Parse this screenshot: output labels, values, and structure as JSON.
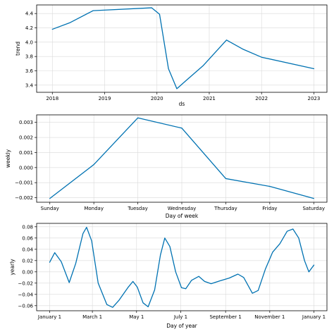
{
  "chart_data": [
    {
      "type": "line",
      "name": "trend",
      "xlabel": "ds",
      "ylabel": "trend",
      "x_ticks": [
        {
          "label": "2018",
          "value": 2018.0
        },
        {
          "label": "2019",
          "value": 2019.0
        },
        {
          "label": "2020",
          "value": 2020.0
        },
        {
          "label": "2021",
          "value": 2021.0
        },
        {
          "label": "2022",
          "value": 2022.0
        },
        {
          "label": "2023",
          "value": 2023.0
        }
      ],
      "y_ticks": [
        {
          "label": "3.4",
          "value": 3.4
        },
        {
          "label": "3.6",
          "value": 3.6
        },
        {
          "label": "3.8",
          "value": 3.8
        },
        {
          "label": "4.0",
          "value": 4.0
        },
        {
          "label": "4.2",
          "value": 4.2
        },
        {
          "label": "4.4",
          "value": 4.4
        }
      ],
      "xlim": [
        2017.7,
        2023.25
      ],
      "ylim": [
        3.3,
        4.52
      ],
      "grid": true,
      "color": "#0072B2",
      "points": [
        [
          2018.0,
          4.18
        ],
        [
          2018.33,
          4.27
        ],
        [
          2018.78,
          4.44
        ],
        [
          2019.9,
          4.48
        ],
        [
          2020.05,
          4.39
        ],
        [
          2020.22,
          3.63
        ],
        [
          2020.38,
          3.35
        ],
        [
          2020.55,
          3.46
        ],
        [
          2020.88,
          3.67
        ],
        [
          2021.33,
          4.03
        ],
        [
          2021.65,
          3.9
        ],
        [
          2022.0,
          3.79
        ],
        [
          2023.0,
          3.63
        ]
      ]
    },
    {
      "type": "line",
      "name": "weekly",
      "xlabel": "Day of week",
      "ylabel": "weekly",
      "x_ticks": [
        {
          "label": "Sunday",
          "value": 0
        },
        {
          "label": "Monday",
          "value": 1
        },
        {
          "label": "Tuesday",
          "value": 2
        },
        {
          "label": "Wednesday",
          "value": 3
        },
        {
          "label": "Thursday",
          "value": 4
        },
        {
          "label": "Friday",
          "value": 5
        },
        {
          "label": "Saturday",
          "value": 6
        }
      ],
      "y_ticks": [
        {
          "label": "−0.002",
          "value": -0.002
        },
        {
          "label": "−0.001",
          "value": -0.001
        },
        {
          "label": "0.000",
          "value": 0.0
        },
        {
          "label": "0.001",
          "value": 0.001
        },
        {
          "label": "0.002",
          "value": 0.002
        },
        {
          "label": "0.003",
          "value": 0.003
        }
      ],
      "xlim": [
        -0.3,
        6.3
      ],
      "ylim": [
        -0.0023,
        0.0035
      ],
      "grid": true,
      "color": "#0072B2",
      "points": [
        [
          0,
          -0.00205
        ],
        [
          1,
          0.0002
        ],
        [
          2,
          0.0033
        ],
        [
          3,
          0.00262
        ],
        [
          4,
          -0.00073
        ],
        [
          5,
          -0.00125
        ],
        [
          6,
          -0.00205
        ]
      ]
    },
    {
      "type": "line",
      "name": "yearly",
      "xlabel": "Day of year",
      "ylabel": "yearly",
      "x_ticks": [
        {
          "label": "January 1",
          "value": 0
        },
        {
          "label": "March 1",
          "value": 59
        },
        {
          "label": "May 1",
          "value": 120
        },
        {
          "label": "July 1",
          "value": 181
        },
        {
          "label": "September 1",
          "value": 243
        },
        {
          "label": "November 1",
          "value": 304
        },
        {
          "label": "January 1",
          "value": 365
        }
      ],
      "y_ticks": [
        {
          "label": "−0.06",
          "value": -0.06
        },
        {
          "label": "−0.04",
          "value": -0.04
        },
        {
          "label": "−0.02",
          "value": -0.02
        },
        {
          "label": "0.00",
          "value": 0.0
        },
        {
          "label": "0.02",
          "value": 0.02
        },
        {
          "label": "0.04",
          "value": 0.04
        },
        {
          "label": "0.06",
          "value": 0.06
        },
        {
          "label": "0.08",
          "value": 0.08
        }
      ],
      "xlim": [
        -18,
        383
      ],
      "ylim": [
        -0.069,
        0.086
      ],
      "grid": true,
      "color": "#0072B2",
      "points": [
        [
          0,
          0.017
        ],
        [
          7,
          0.034
        ],
        [
          16,
          0.018
        ],
        [
          27,
          -0.019
        ],
        [
          36,
          0.015
        ],
        [
          46,
          0.068
        ],
        [
          51,
          0.079
        ],
        [
          58,
          0.055
        ],
        [
          67,
          -0.02
        ],
        [
          79,
          -0.058
        ],
        [
          87,
          -0.063
        ],
        [
          96,
          -0.05
        ],
        [
          108,
          -0.028
        ],
        [
          115,
          -0.017
        ],
        [
          121,
          -0.027
        ],
        [
          129,
          -0.055
        ],
        [
          136,
          -0.062
        ],
        [
          145,
          -0.032
        ],
        [
          153,
          0.03
        ],
        [
          159,
          0.06
        ],
        [
          166,
          0.045
        ],
        [
          174,
          0.0
        ],
        [
          182,
          -0.028
        ],
        [
          188,
          -0.03
        ],
        [
          196,
          -0.015
        ],
        [
          206,
          -0.008
        ],
        [
          214,
          -0.017
        ],
        [
          223,
          -0.021
        ],
        [
          235,
          -0.016
        ],
        [
          248,
          -0.011
        ],
        [
          260,
          -0.004
        ],
        [
          268,
          -0.01
        ],
        [
          280,
          -0.038
        ],
        [
          288,
          -0.033
        ],
        [
          298,
          0.005
        ],
        [
          308,
          0.035
        ],
        [
          318,
          0.05
        ],
        [
          328,
          0.072
        ],
        [
          336,
          0.076
        ],
        [
          344,
          0.06
        ],
        [
          352,
          0.02
        ],
        [
          358,
          0.0
        ],
        [
          365,
          0.012
        ]
      ]
    }
  ]
}
